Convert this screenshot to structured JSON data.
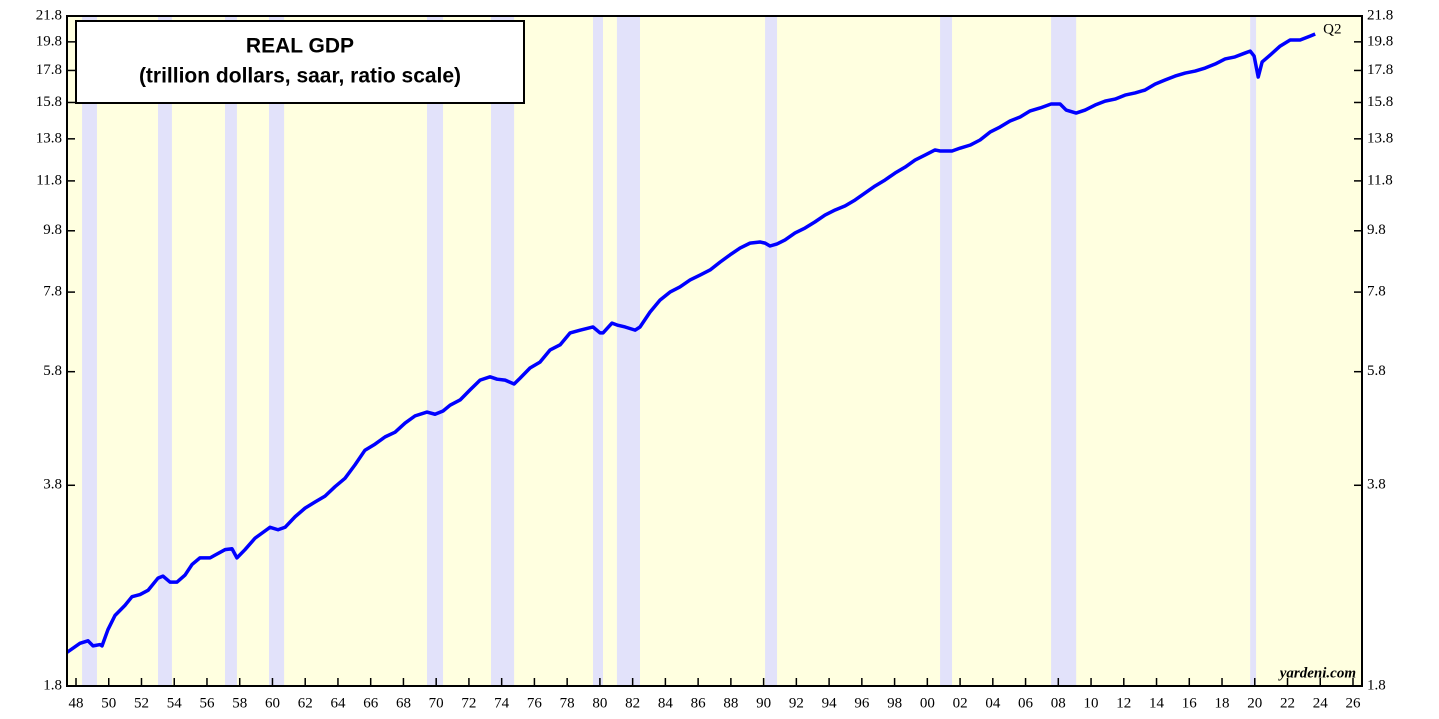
{
  "chart_data": {
    "type": "line",
    "title": "REAL GDP",
    "subtitle": "(trillion dollars, saar, ratio scale)",
    "annotations": [
      "Q2",
      "yardeni.com"
    ],
    "log_scale": true,
    "background_color": "#ffffe0",
    "shade_color": "#e2e2fa",
    "shaded_periods": [
      [
        1948.37,
        1949.28
      ],
      [
        1953.01,
        1953.86
      ],
      [
        1957.1,
        1957.83
      ],
      [
        1959.79,
        1960.71
      ],
      [
        1969.44,
        1970.42
      ],
      [
        1973.35,
        1974.76
      ],
      [
        1979.58,
        1980.19
      ],
      [
        1981.04,
        1982.45
      ],
      [
        1990.09,
        1990.82
      ],
      [
        2000.78,
        2001.51
      ],
      [
        2007.56,
        2009.09
      ],
      [
        2019.72,
        2020.08
      ]
    ],
    "x": [
      1947.45,
      1948.24,
      1948.73,
      1949.04,
      1949.47,
      1949.59,
      1949.95,
      1950.38,
      1950.99,
      1951.42,
      1951.91,
      1952.4,
      1953.01,
      1953.31,
      1953.74,
      1954.17,
      1954.66,
      1955.09,
      1955.57,
      1956.19,
      1956.49,
      1957.1,
      1957.53,
      1957.83,
      1958.32,
      1958.93,
      1959.36,
      1959.85,
      1960.34,
      1960.77,
      1961.38,
      1961.99,
      1962.6,
      1963.21,
      1963.82,
      1964.43,
      1965.04,
      1965.65,
      1966.27,
      1966.88,
      1967.49,
      1968.1,
      1968.71,
      1969.44,
      1969.93,
      1970.42,
      1970.85,
      1971.46,
      1972.07,
      1972.68,
      1973.29,
      1973.72,
      1974.21,
      1974.76,
      1975.12,
      1975.73,
      1976.34,
      1976.96,
      1977.57,
      1978.18,
      1978.79,
      1979.58,
      1980.01,
      1980.19,
      1980.74,
      1981.05,
      1981.54,
      1982.15,
      1982.45,
      1983.06,
      1983.67,
      1984.28,
      1984.89,
      1985.51,
      1986.12,
      1986.73,
      1987.34,
      1987.95,
      1988.56,
      1989.17,
      1989.78,
      1990.09,
      1990.39,
      1990.82,
      1991.31,
      1991.92,
      1992.53,
      1993.14,
      1993.75,
      1994.37,
      1994.98,
      1995.59,
      1996.2,
      1996.81,
      1997.42,
      1998.03,
      1998.64,
      1999.25,
      1999.86,
      2000.47,
      2000.78,
      2001.51,
      2002.0,
      2002.61,
      2003.22,
      2003.83,
      2004.44,
      2005.05,
      2005.67,
      2006.28,
      2006.89,
      2007.56,
      2008.11,
      2008.48,
      2009.09,
      2009.64,
      2010.25,
      2010.86,
      2011.47,
      2012.08,
      2012.69,
      2013.3,
      2013.91,
      2014.52,
      2015.13,
      2015.75,
      2016.36,
      2016.97,
      2017.58,
      2018.19,
      2018.79,
      2019.4,
      2019.72,
      2019.96,
      2020.21,
      2020.45,
      2020.94,
      2021.55,
      2022.16,
      2022.77,
      2023.38,
      2023.69
    ],
    "series": [
      {
        "name": "Real GDP",
        "color": "#0000ff",
        "values": [
          2.04,
          2.11,
          2.13,
          2.09,
          2.1,
          2.09,
          2.22,
          2.34,
          2.43,
          2.51,
          2.53,
          2.57,
          2.69,
          2.71,
          2.65,
          2.65,
          2.72,
          2.83,
          2.9,
          2.9,
          2.93,
          2.99,
          3.0,
          2.9,
          2.99,
          3.12,
          3.18,
          3.25,
          3.22,
          3.25,
          3.38,
          3.49,
          3.57,
          3.65,
          3.78,
          3.9,
          4.1,
          4.33,
          4.43,
          4.55,
          4.63,
          4.79,
          4.92,
          4.99,
          4.95,
          5.01,
          5.12,
          5.22,
          5.42,
          5.62,
          5.69,
          5.64,
          5.62,
          5.54,
          5.66,
          5.88,
          6.01,
          6.29,
          6.41,
          6.7,
          6.77,
          6.85,
          6.7,
          6.7,
          6.95,
          6.9,
          6.85,
          6.77,
          6.85,
          7.24,
          7.57,
          7.8,
          7.95,
          8.16,
          8.31,
          8.47,
          8.72,
          8.96,
          9.19,
          9.36,
          9.4,
          9.36,
          9.26,
          9.33,
          9.47,
          9.72,
          9.9,
          10.13,
          10.39,
          10.59,
          10.75,
          10.99,
          11.28,
          11.58,
          11.84,
          12.15,
          12.42,
          12.75,
          12.99,
          13.24,
          13.19,
          13.19,
          13.33,
          13.48,
          13.74,
          14.15,
          14.42,
          14.75,
          14.97,
          15.31,
          15.48,
          15.71,
          15.71,
          15.36,
          15.19,
          15.36,
          15.65,
          15.88,
          16.0,
          16.24,
          16.37,
          16.55,
          16.92,
          17.18,
          17.43,
          17.63,
          17.76,
          17.96,
          18.23,
          18.58,
          18.72,
          18.99,
          19.13,
          18.78,
          17.37,
          18.37,
          18.85,
          19.49,
          19.94,
          19.94,
          20.23,
          20.39
        ]
      }
    ],
    "xlim": [
      1947.45,
      2026.55
    ],
    "xticks": [
      {
        "value": 1948,
        "label": "48"
      },
      {
        "value": 1950,
        "label": "50"
      },
      {
        "value": 1952,
        "label": "52"
      },
      {
        "value": 1954,
        "label": "54"
      },
      {
        "value": 1956,
        "label": "56"
      },
      {
        "value": 1958,
        "label": "58"
      },
      {
        "value": 1960,
        "label": "60"
      },
      {
        "value": 1962,
        "label": "62"
      },
      {
        "value": 1964,
        "label": "64"
      },
      {
        "value": 1966,
        "label": "66"
      },
      {
        "value": 1968,
        "label": "68"
      },
      {
        "value": 1970,
        "label": "70"
      },
      {
        "value": 1972,
        "label": "72"
      },
      {
        "value": 1974,
        "label": "74"
      },
      {
        "value": 1976,
        "label": "76"
      },
      {
        "value": 1978,
        "label": "78"
      },
      {
        "value": 1980,
        "label": "80"
      },
      {
        "value": 1982,
        "label": "82"
      },
      {
        "value": 1984,
        "label": "84"
      },
      {
        "value": 1986,
        "label": "86"
      },
      {
        "value": 1988,
        "label": "88"
      },
      {
        "value": 1990,
        "label": "90"
      },
      {
        "value": 1992,
        "label": "92"
      },
      {
        "value": 1994,
        "label": "94"
      },
      {
        "value": 1996,
        "label": "96"
      },
      {
        "value": 1998,
        "label": "98"
      },
      {
        "value": 2000,
        "label": "00"
      },
      {
        "value": 2002,
        "label": "02"
      },
      {
        "value": 2004,
        "label": "04"
      },
      {
        "value": 2006,
        "label": "06"
      },
      {
        "value": 2008,
        "label": "08"
      },
      {
        "value": 2010,
        "label": "10"
      },
      {
        "value": 2012,
        "label": "12"
      },
      {
        "value": 2014,
        "label": "14"
      },
      {
        "value": 2016,
        "label": "16"
      },
      {
        "value": 2018,
        "label": "18"
      },
      {
        "value": 2020,
        "label": "20"
      },
      {
        "value": 2022,
        "label": "22"
      },
      {
        "value": 2024,
        "label": "24"
      },
      {
        "value": 2026,
        "label": "26"
      }
    ],
    "ylim": [
      1.8,
      21.8
    ],
    "yticks": [
      1.8,
      3.8,
      5.8,
      7.8,
      9.8,
      11.8,
      13.8,
      15.8,
      17.8,
      19.8,
      21.8
    ]
  }
}
